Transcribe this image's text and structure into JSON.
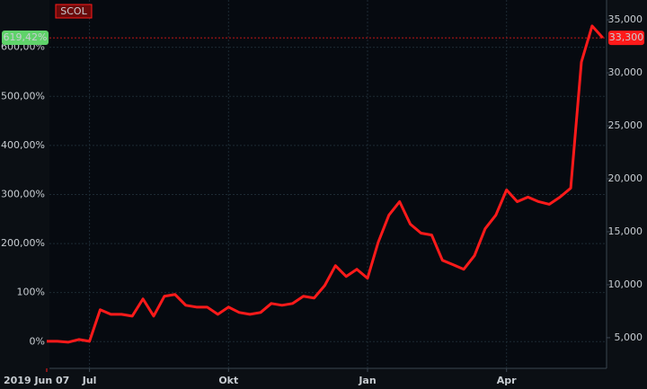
{
  "chart_data": {
    "type": "line",
    "categories": [
      "2019 Jun 07",
      null,
      null,
      null,
      "Jul",
      null,
      null,
      null,
      null,
      null,
      null,
      null,
      null,
      null,
      null,
      null,
      null,
      "Okt",
      null,
      null,
      null,
      null,
      null,
      null,
      null,
      null,
      null,
      null,
      null,
      null,
      "Jan",
      null,
      null,
      null,
      null,
      null,
      null,
      null,
      null,
      null,
      null,
      null,
      null,
      "Apr",
      null,
      null,
      null,
      null,
      null,
      null,
      null,
      null,
      null
    ],
    "series": [
      {
        "name": "SCOL",
        "color": "#ff1a1a",
        "axis": "y2",
        "values": [
          4660,
          4660,
          4575,
          4830,
          4660,
          7640,
          7210,
          7210,
          7040,
          8660,
          7040,
          8910,
          9080,
          8060,
          7890,
          7890,
          7210,
          7890,
          7380,
          7210,
          7380,
          8230,
          8060,
          8230,
          8910,
          8740,
          9930,
          11800,
          10780,
          11460,
          10610,
          14010,
          16570,
          17840,
          15720,
          14870,
          14690,
          12310,
          11890,
          11460,
          12740,
          15290,
          16570,
          18950,
          17840,
          18270,
          17840,
          17590,
          18270,
          19120,
          31020,
          34420,
          33300
        ]
      }
    ],
    "ylim": [
      -54.4,
      696.4
    ],
    "yticks": [
      {
        "value": 0,
        "label": "0%"
      },
      {
        "value": 100,
        "label": "100%"
      },
      {
        "value": 200,
        "label": "200,00%"
      },
      {
        "value": 300,
        "label": "300,00%"
      },
      {
        "value": 400,
        "label": "400,00%"
      },
      {
        "value": 500,
        "label": "500,00%"
      },
      {
        "value": 600,
        "label": "600,00%"
      }
    ],
    "y2lim": [
      2109,
      36871
    ],
    "y2ticks": [
      {
        "value": 5000,
        "label": "5,000"
      },
      {
        "value": 10000,
        "label": "10,000"
      },
      {
        "value": 15000,
        "label": "15,000"
      },
      {
        "value": 20000,
        "label": "20,000"
      },
      {
        "value": 25000,
        "label": "25,000"
      },
      {
        "value": 30000,
        "label": "30,000"
      },
      {
        "value": 35000,
        "label": "35,000"
      }
    ],
    "last_percent": {
      "value": 619.42,
      "label": "619,42%"
    },
    "last_value": {
      "value": 33300,
      "label": "33,300"
    },
    "grid": true
  }
}
